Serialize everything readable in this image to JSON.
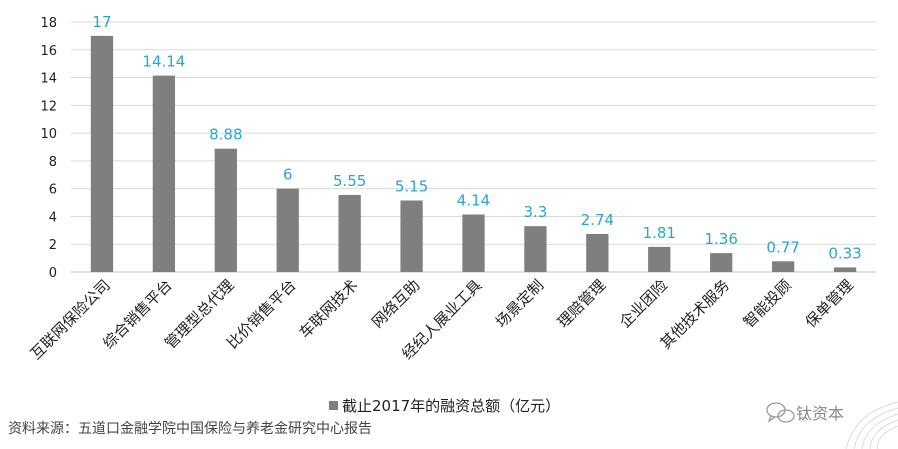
{
  "chart_data": {
    "type": "bar",
    "categories": [
      "互联网保险公司",
      "综合销售平台",
      "管理型总代理",
      "比价销售平台",
      "车联网技术",
      "网络互助",
      "经纪人展业工具",
      "场景定制",
      "理赔管理",
      "企业团险",
      "其他技术服务",
      "智能投顾",
      "保单管理"
    ],
    "series": [
      {
        "name": "截止2017年的融资总额（亿元）",
        "values": [
          17,
          14.14,
          8.88,
          6,
          5.55,
          5.15,
          4.14,
          3.3,
          2.74,
          1.81,
          1.36,
          0.77,
          0.33
        ]
      }
    ],
    "data_labels": [
      "17",
      "14.14",
      "8.88",
      "6",
      "5.55",
      "5.15",
      "4.14",
      "3.3",
      "2.74",
      "1.81",
      "1.36",
      "0.77",
      "0.33"
    ],
    "ylim": [
      0,
      18
    ],
    "yticks": [
      0,
      2,
      4,
      6,
      8,
      10,
      12,
      14,
      16,
      18
    ],
    "grid": true,
    "legend_position": "bottom",
    "colors": {
      "bar": "#7f7f7f",
      "data_label": "#2aa6cf",
      "grid": "#d9d9d9"
    }
  },
  "source_note": "资料来源：五道口金融学院中国保险与养老金研究中心报告",
  "watermark": {
    "text": "钛资本",
    "icon": "wechat-icon"
  }
}
